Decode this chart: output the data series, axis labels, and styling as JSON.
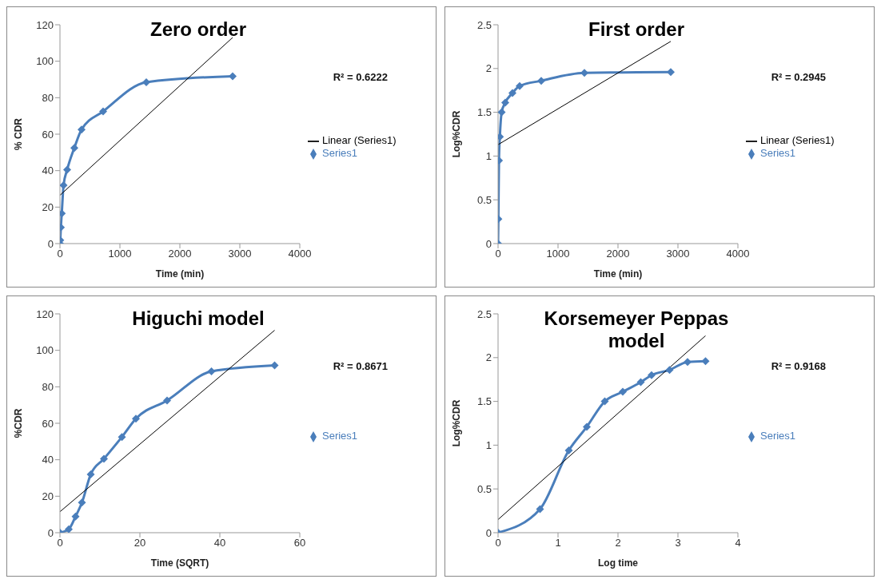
{
  "chart_data": [
    {
      "type": "line",
      "title": "Zero order",
      "xlabel": "Time (min)",
      "ylabel": "% CDR",
      "xlim": [
        0,
        4000
      ],
      "xticks": [
        0,
        1000,
        2000,
        3000,
        4000
      ],
      "ylim": [
        0,
        120
      ],
      "yticks": [
        0,
        20,
        40,
        60,
        80,
        100,
        120
      ],
      "grid": false,
      "legend": "right",
      "annotations": [
        "R² = 0.6222"
      ],
      "series": [
        {
          "name": "Series1",
          "color": "#4a7ebb",
          "marker": "diamond",
          "x": [
            0,
            5,
            15,
            30,
            60,
            120,
            240,
            360,
            720,
            1440,
            2880
          ],
          "values": [
            0,
            1.9,
            8.9,
            16.5,
            32,
            40.5,
            52.5,
            62.5,
            72.5,
            88.5,
            91.8
          ]
        },
        {
          "name": "Linear (Series1)",
          "color": "#000000",
          "marker": "none",
          "x": [
            0,
            2880
          ],
          "values": [
            26.5,
            113
          ]
        }
      ]
    },
    {
      "type": "line",
      "title": "First order",
      "xlabel": "Time (min)",
      "ylabel": "Log%CDR",
      "xlim": [
        0,
        4000
      ],
      "xticks": [
        0,
        1000,
        2000,
        3000,
        4000
      ],
      "ylim": [
        0,
        2.5
      ],
      "yticks": [
        0,
        0.5,
        1,
        1.5,
        2,
        2.5
      ],
      "grid": false,
      "legend": "right",
      "annotations": [
        "R² = 0.2945"
      ],
      "series": [
        {
          "name": "Series1",
          "color": "#4a7ebb",
          "marker": "diamond",
          "x": [
            0,
            5,
            15,
            30,
            60,
            120,
            240,
            360,
            720,
            1440,
            2880
          ],
          "values": [
            0,
            0.28,
            0.95,
            1.22,
            1.5,
            1.61,
            1.72,
            1.8,
            1.86,
            1.95,
            1.96
          ]
        },
        {
          "name": "Linear (Series1)",
          "color": "#000000",
          "marker": "none",
          "x": [
            0,
            2880
          ],
          "values": [
            1.13,
            2.31
          ]
        }
      ]
    },
    {
      "type": "line",
      "title": "Higuchi model",
      "xlabel": "Time (SQRT)",
      "ylabel": "%CDR",
      "xlim": [
        0,
        60
      ],
      "xticks": [
        0,
        20,
        40,
        60
      ],
      "ylim": [
        0,
        120
      ],
      "yticks": [
        0,
        20,
        40,
        60,
        80,
        100,
        120
      ],
      "grid": false,
      "legend": "right",
      "annotations": [
        "R² = 0.8671"
      ],
      "series": [
        {
          "name": "Series1",
          "color": "#4a7ebb",
          "marker": "diamond",
          "x": [
            0,
            2.2,
            3.9,
            5.5,
            7.7,
            11,
            15.5,
            19,
            26.8,
            37.9,
            53.7
          ],
          "values": [
            0,
            1.9,
            8.9,
            16.5,
            32,
            40.5,
            52.5,
            62.5,
            72.5,
            88.5,
            91.8
          ]
        },
        {
          "color": "#000000",
          "marker": "none",
          "x": [
            0,
            53.7
          ],
          "values": [
            11.5,
            111
          ]
        }
      ]
    },
    {
      "type": "line",
      "title": "Korsemeyer Peppas model",
      "xlabel": "Log time",
      "ylabel": "Log%CDR",
      "xlim": [
        0,
        4
      ],
      "xticks": [
        0,
        1,
        2,
        3,
        4
      ],
      "ylim": [
        0,
        2.5
      ],
      "yticks": [
        0,
        0.5,
        1,
        1.5,
        2,
        2.5
      ],
      "grid": false,
      "legend": "right",
      "annotations": [
        "R² = 0.9168"
      ],
      "series": [
        {
          "name": "Series1",
          "color": "#4a7ebb",
          "marker": "diamond",
          "x": [
            0,
            0.7,
            1.18,
            1.48,
            1.78,
            2.08,
            2.38,
            2.56,
            2.86,
            3.16,
            3.46
          ],
          "values": [
            0,
            0.27,
            0.94,
            1.21,
            1.5,
            1.61,
            1.72,
            1.8,
            1.86,
            1.95,
            1.96
          ]
        },
        {
          "color": "#000000",
          "marker": "none",
          "x": [
            0,
            3.46
          ],
          "values": [
            0.15,
            2.25
          ]
        }
      ]
    }
  ]
}
